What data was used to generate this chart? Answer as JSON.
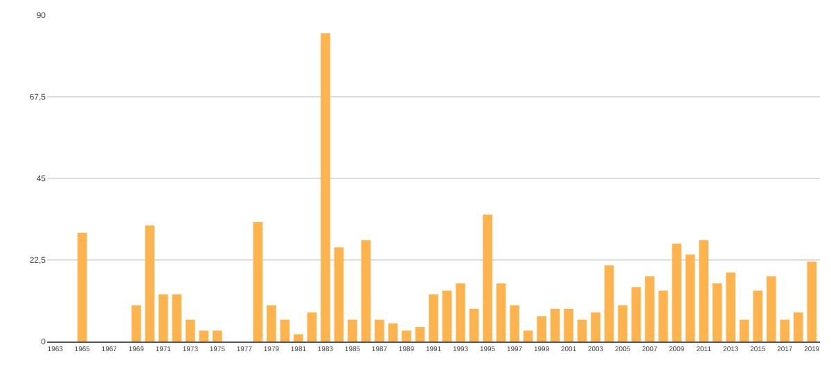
{
  "chart_data": {
    "type": "bar",
    "categories": [
      "1963",
      null,
      "1965",
      null,
      "1967",
      null,
      "1969",
      null,
      "1971",
      null,
      "1973",
      null,
      "1975",
      null,
      "1977",
      null,
      "1979",
      null,
      "1981",
      null,
      "1983",
      null,
      "1985",
      null,
      "1987",
      null,
      "1989",
      null,
      "1991",
      null,
      "1993",
      null,
      "1995",
      null,
      "1997",
      null,
      "1999",
      null,
      "2001",
      null,
      "2003",
      null,
      "2005",
      null,
      "2007",
      null,
      "2009",
      null,
      "2011",
      null,
      "2013",
      null,
      "2015",
      null,
      "2017",
      null,
      "2019"
    ],
    "values": [
      0,
      0,
      30,
      0,
      0,
      0,
      10,
      32,
      13,
      13,
      6,
      3,
      3,
      0,
      0,
      33,
      10,
      6,
      2,
      8,
      85,
      26,
      6,
      28,
      6,
      5,
      3,
      4,
      13,
      14,
      16,
      9,
      35,
      16,
      10,
      3,
      7,
      9,
      9,
      6,
      8,
      21,
      10,
      15,
      18,
      14,
      27,
      24,
      28,
      16,
      19,
      6,
      14,
      18,
      6,
      8,
      22
    ],
    "color": "#fdb44e",
    "ylim": [
      0,
      90
    ],
    "yticks": [
      0,
      {
        "value": 22.5,
        "label": "22,5"
      },
      45,
      {
        "value": 67.5,
        "label": "67,5"
      },
      90
    ],
    "grid": "y"
  }
}
